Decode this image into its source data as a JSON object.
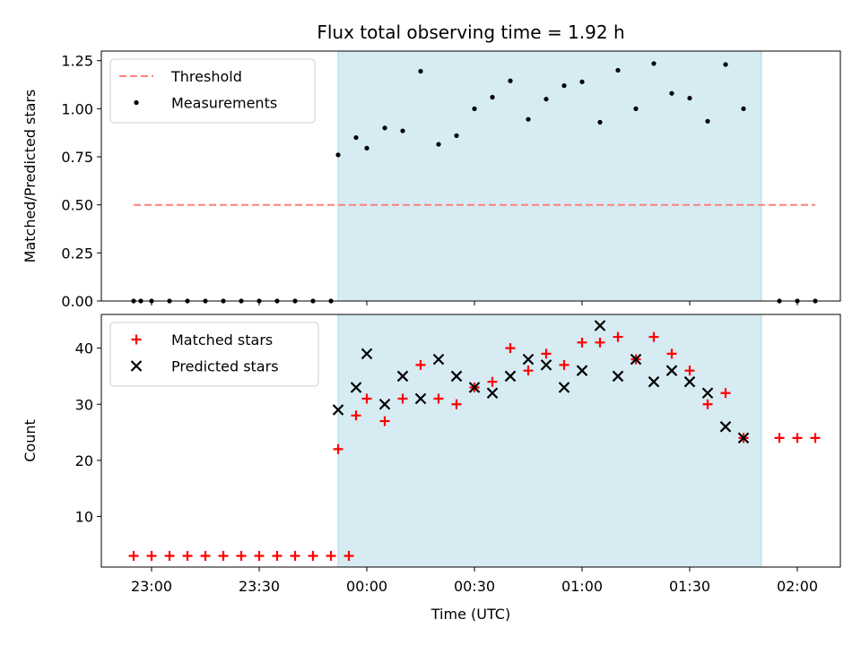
{
  "chart_data": {
    "title": "Flux total observing time = 1.92 h",
    "xlabel": "Time (UTC)",
    "x_range": [
      "22:46",
      "02:12"
    ],
    "x_ticks": [
      "23:00",
      "23:30",
      "00:00",
      "00:30",
      "01:00",
      "01:30",
      "02:00"
    ],
    "shaded_span": [
      "23:52",
      "01:50"
    ],
    "shade_color": "#add8e6",
    "panels": [
      {
        "type": "scatter",
        "ylabel": "Matched/Predicted stars",
        "ylim": [
          0,
          1.3
        ],
        "y_ticks": [
          "0.00",
          "0.25",
          "0.50",
          "0.75",
          "1.00",
          "1.25"
        ],
        "legend_position": "top-left",
        "threshold": {
          "name": "Threshold",
          "value": 0.5,
          "x_from": "22:55",
          "x_to": "02:05",
          "color": "#ff7f7f"
        },
        "series": [
          {
            "name": "Measurements",
            "marker": "dot",
            "color": "#000000",
            "points": [
              [
                "22:55",
                0
              ],
              [
                "22:57",
                0
              ],
              [
                "23:00",
                0
              ],
              [
                "23:05",
                0
              ],
              [
                "23:10",
                0
              ],
              [
                "23:15",
                0
              ],
              [
                "23:20",
                0
              ],
              [
                "23:25",
                0
              ],
              [
                "23:30",
                0
              ],
              [
                "23:35",
                0
              ],
              [
                "23:40",
                0
              ],
              [
                "23:45",
                0
              ],
              [
                "23:50",
                0
              ],
              [
                "23:52",
                0.76
              ],
              [
                "23:57",
                0.85
              ],
              [
                "00:00",
                0.795
              ],
              [
                "00:05",
                0.9
              ],
              [
                "00:10",
                0.885
              ],
              [
                "00:15",
                1.195
              ],
              [
                "00:20",
                0.815
              ],
              [
                "00:25",
                0.86
              ],
              [
                "00:30",
                1.0
              ],
              [
                "00:35",
                1.06
              ],
              [
                "00:40",
                1.145
              ],
              [
                "00:45",
                0.945
              ],
              [
                "00:50",
                1.05
              ],
              [
                "00:55",
                1.12
              ],
              [
                "01:00",
                1.14
              ],
              [
                "01:05",
                0.93
              ],
              [
                "01:10",
                1.2
              ],
              [
                "01:15",
                1.0
              ],
              [
                "01:20",
                1.235
              ],
              [
                "01:25",
                1.08
              ],
              [
                "01:30",
                1.055
              ],
              [
                "01:35",
                0.935
              ],
              [
                "01:40",
                1.23
              ],
              [
                "01:45",
                1.0
              ],
              [
                "01:55",
                0
              ],
              [
                "02:00",
                0
              ],
              [
                "02:05",
                0
              ]
            ]
          }
        ]
      },
      {
        "type": "scatter",
        "ylabel": "Count",
        "ylim": [
          1,
          46
        ],
        "y_ticks": [
          "10",
          "20",
          "30",
          "40"
        ],
        "legend_position": "top-left",
        "series": [
          {
            "name": "Matched stars",
            "marker": "plus",
            "color": "#ff0000",
            "points": [
              [
                "22:55",
                3
              ],
              [
                "23:00",
                3
              ],
              [
                "23:05",
                3
              ],
              [
                "23:10",
                3
              ],
              [
                "23:15",
                3
              ],
              [
                "23:20",
                3
              ],
              [
                "23:25",
                3
              ],
              [
                "23:30",
                3
              ],
              [
                "23:35",
                3
              ],
              [
                "23:40",
                3
              ],
              [
                "23:45",
                3
              ],
              [
                "23:50",
                3
              ],
              [
                "23:55",
                3
              ],
              [
                "23:52",
                22
              ],
              [
                "23:57",
                28
              ],
              [
                "00:00",
                31
              ],
              [
                "00:05",
                27
              ],
              [
                "00:10",
                31
              ],
              [
                "00:15",
                37
              ],
              [
                "00:20",
                31
              ],
              [
                "00:25",
                30
              ],
              [
                "00:30",
                33
              ],
              [
                "00:35",
                34
              ],
              [
                "00:40",
                40
              ],
              [
                "00:45",
                36
              ],
              [
                "00:50",
                39
              ],
              [
                "00:55",
                37
              ],
              [
                "01:00",
                41
              ],
              [
                "01:05",
                41
              ],
              [
                "01:10",
                42
              ],
              [
                "01:15",
                38
              ],
              [
                "01:20",
                42
              ],
              [
                "01:25",
                39
              ],
              [
                "01:30",
                36
              ],
              [
                "01:35",
                30
              ],
              [
                "01:40",
                32
              ],
              [
                "01:45",
                24
              ],
              [
                "01:55",
                24
              ],
              [
                "02:00",
                24
              ],
              [
                "02:05",
                24
              ]
            ]
          },
          {
            "name": "Predicted stars",
            "marker": "x",
            "color": "#000000",
            "points": [
              [
                "23:52",
                29
              ],
              [
                "23:57",
                33
              ],
              [
                "00:00",
                39
              ],
              [
                "00:05",
                30
              ],
              [
                "00:10",
                35
              ],
              [
                "00:15",
                31
              ],
              [
                "00:20",
                38
              ],
              [
                "00:25",
                35
              ],
              [
                "00:30",
                33
              ],
              [
                "00:35",
                32
              ],
              [
                "00:40",
                35
              ],
              [
                "00:45",
                38
              ],
              [
                "00:50",
                37
              ],
              [
                "00:55",
                33
              ],
              [
                "01:00",
                36
              ],
              [
                "01:05",
                44
              ],
              [
                "01:10",
                35
              ],
              [
                "01:15",
                38
              ],
              [
                "01:20",
                34
              ],
              [
                "01:25",
                36
              ],
              [
                "01:30",
                34
              ],
              [
                "01:35",
                32
              ],
              [
                "01:40",
                26
              ],
              [
                "01:45",
                24
              ]
            ]
          }
        ]
      }
    ]
  }
}
